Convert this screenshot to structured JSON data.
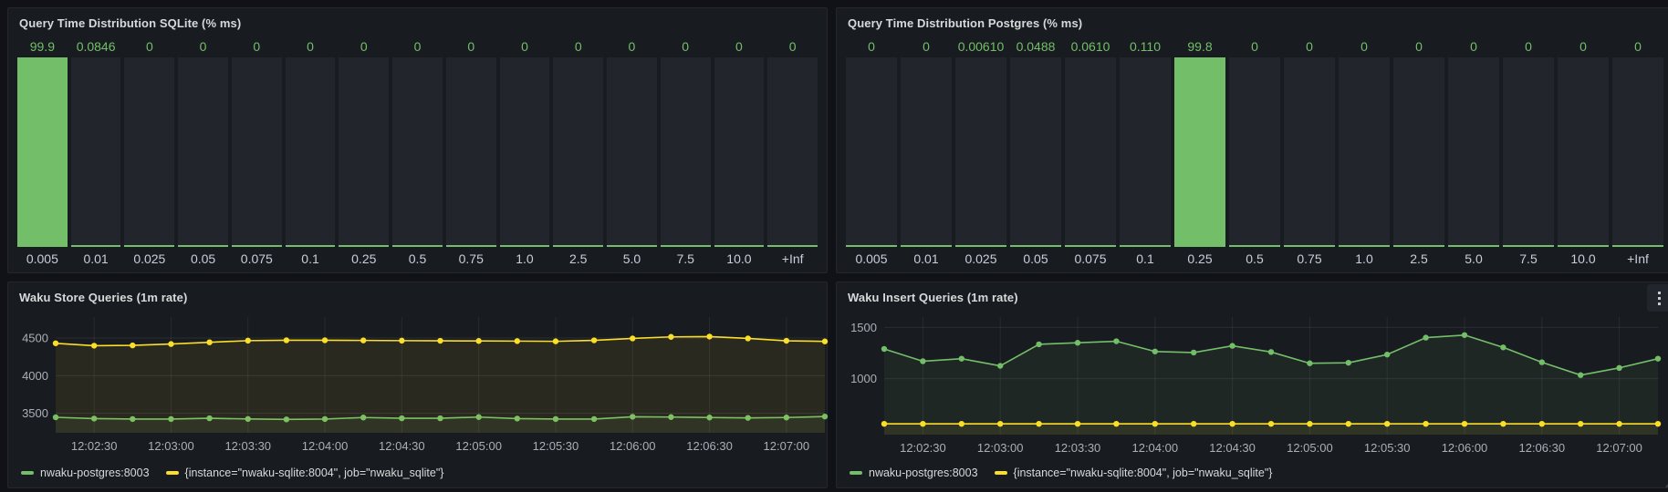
{
  "colors": {
    "green": "#73bf69",
    "yellow": "#fade2a",
    "panel_bg": "#181b1f",
    "page_bg": "#111217",
    "bar_bg": "#22252b",
    "grid_line": "#24262c",
    "title_text": "#d8d9da",
    "axis_text": "#aab0b9"
  },
  "panels": {
    "sqlite_hist": {
      "title": "Query Time Distribution SQLite (% ms)"
    },
    "postgres_hist": {
      "title": "Query Time Distribution Postgres (% ms)"
    },
    "store": {
      "title": "Waku Store Queries (1m rate)"
    },
    "insert": {
      "title": "Waku Insert Queries (1m rate)"
    }
  },
  "chart_data": [
    {
      "type": "bar",
      "id": "sqlite-histogram",
      "title": "Query Time Distribution SQLite (% ms)",
      "categories": [
        "0.005",
        "0.01",
        "0.025",
        "0.05",
        "0.075",
        "0.1",
        "0.25",
        "0.5",
        "0.75",
        "1.0",
        "2.5",
        "5.0",
        "7.5",
        "10.0",
        "+Inf"
      ],
      "values": [
        99.9,
        0.0846,
        0,
        0,
        0,
        0,
        0,
        0,
        0,
        0,
        0,
        0,
        0,
        0,
        0
      ],
      "value_labels": [
        "99.9",
        "0.0846",
        "0",
        "0",
        "0",
        "0",
        "0",
        "0",
        "0",
        "0",
        "0",
        "0",
        "0",
        "0",
        "0"
      ],
      "ylim": [
        0,
        100
      ],
      "bar_color": "#73bf69"
    },
    {
      "type": "bar",
      "id": "postgres-histogram",
      "title": "Query Time Distribution Postgres (% ms)",
      "categories": [
        "0.005",
        "0.01",
        "0.025",
        "0.05",
        "0.075",
        "0.1",
        "0.25",
        "0.5",
        "0.75",
        "1.0",
        "2.5",
        "5.0",
        "7.5",
        "10.0",
        "+Inf"
      ],
      "values": [
        0,
        0,
        0.0061,
        0.0488,
        0.061,
        0.11,
        99.8,
        0,
        0,
        0,
        0,
        0,
        0,
        0,
        0
      ],
      "value_labels": [
        "0",
        "0",
        "0.00610",
        "0.0488",
        "0.0610",
        "0.110",
        "99.8",
        "0",
        "0",
        "0",
        "0",
        "0",
        "0",
        "0",
        "0"
      ],
      "ylim": [
        0,
        100
      ],
      "bar_color": "#73bf69"
    },
    {
      "type": "line",
      "id": "store-queries",
      "title": "Waku Store Queries (1m rate)",
      "x_ticks": [
        "12:02:30",
        "12:03:00",
        "12:03:30",
        "12:04:00",
        "12:04:30",
        "12:05:00",
        "12:05:30",
        "12:06:00",
        "12:06:30",
        "12:07:00"
      ],
      "x_tick_idx": [
        1,
        3,
        5,
        7,
        9,
        11,
        13,
        15,
        17,
        19
      ],
      "yticks": [
        3500,
        4000,
        4500
      ],
      "ylim": [
        3240,
        4730
      ],
      "legend_position": "bottom",
      "grid": true,
      "series": [
        {
          "name": "nwaku-postgres:8003",
          "color": "#73bf69",
          "values": [
            3446,
            3429,
            3423,
            3423,
            3433,
            3424,
            3418,
            3423,
            3443,
            3433,
            3433,
            3449,
            3429,
            3423,
            3423,
            3453,
            3449,
            3443,
            3438,
            3443,
            3456
          ]
        },
        {
          "name": "{instance=\"nwaku-sqlite:8004\", job=\"nwaku_sqlite\"}",
          "color": "#fade2a",
          "values": [
            4430,
            4398,
            4402,
            4420,
            4443,
            4465,
            4470,
            4470,
            4468,
            4465,
            4463,
            4461,
            4459,
            4456,
            4469,
            4494,
            4515,
            4519,
            4494,
            4463,
            4455
          ]
        }
      ]
    },
    {
      "type": "line",
      "id": "insert-queries",
      "title": "Waku Insert Queries (1m rate)",
      "x_ticks": [
        "12:02:30",
        "12:03:00",
        "12:03:30",
        "12:04:00",
        "12:04:30",
        "12:05:00",
        "12:05:30",
        "12:06:00",
        "12:06:30",
        "12:07:00"
      ],
      "x_tick_idx": [
        1,
        3,
        5,
        7,
        9,
        11,
        13,
        15,
        17,
        19
      ],
      "yticks": [
        1000,
        1500
      ],
      "ylim": [
        455,
        1565
      ],
      "legend_position": "bottom",
      "grid": true,
      "series": [
        {
          "name": "nwaku-postgres:8003",
          "color": "#73bf69",
          "values": [
            1290,
            1170,
            1195,
            1125,
            1335,
            1350,
            1365,
            1265,
            1255,
            1320,
            1260,
            1150,
            1155,
            1235,
            1400,
            1425,
            1305,
            1160,
            1035,
            1105,
            1195
          ]
        },
        {
          "name": "{instance=\"nwaku-sqlite:8004\", job=\"nwaku_sqlite\"}",
          "color": "#fade2a",
          "values": [
            560,
            560,
            560,
            560,
            560,
            560,
            560,
            560,
            560,
            560,
            560,
            560,
            560,
            560,
            560,
            560,
            560,
            560,
            560,
            560,
            560
          ]
        }
      ]
    }
  ]
}
